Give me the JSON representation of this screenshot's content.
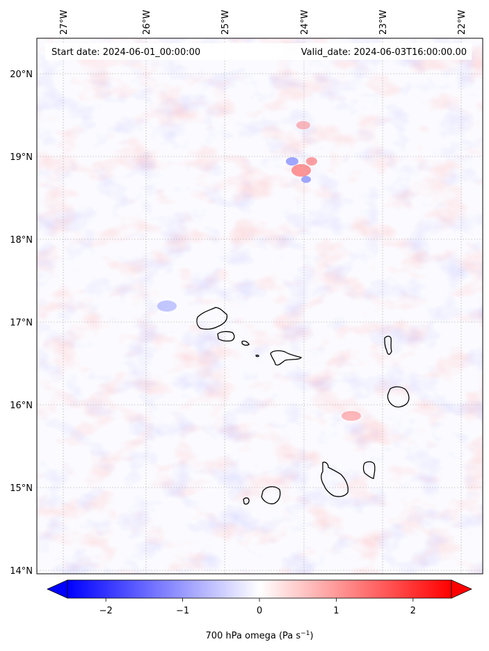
{
  "map": {
    "start_date_label": "Start date: 2024-06-01_00:00:00",
    "valid_date_label": "Valid_date: 2024-06-03T16:00:00.00",
    "lon_ticks": [
      "27°W",
      "26°W",
      "25°W",
      "24°W",
      "23°W",
      "22°W"
    ],
    "lat_ticks": [
      "20°N",
      "19°N",
      "18°N",
      "17°N",
      "16°N",
      "15°N",
      "14°N"
    ],
    "field_name": "700 hPa omega",
    "gridlines": true,
    "coastlines": true,
    "colormap": "bwr",
    "colors": {
      "negative": "#0000ff",
      "zero": "#ffffff",
      "positive": "#ff0000",
      "coast": "#000000"
    }
  },
  "colorbar": {
    "label_prefix": "700 hPa omega (Pa s",
    "label_sup": "−1",
    "label_suffix": ")",
    "ticks": [
      "−2",
      "−1",
      "0",
      "1",
      "2"
    ],
    "tick_values": [
      -2,
      -1,
      0,
      1,
      2
    ],
    "range": [
      -2.5,
      2.5
    ],
    "extend": "both",
    "orientation": "horizontal",
    "placement": "bottom"
  }
}
